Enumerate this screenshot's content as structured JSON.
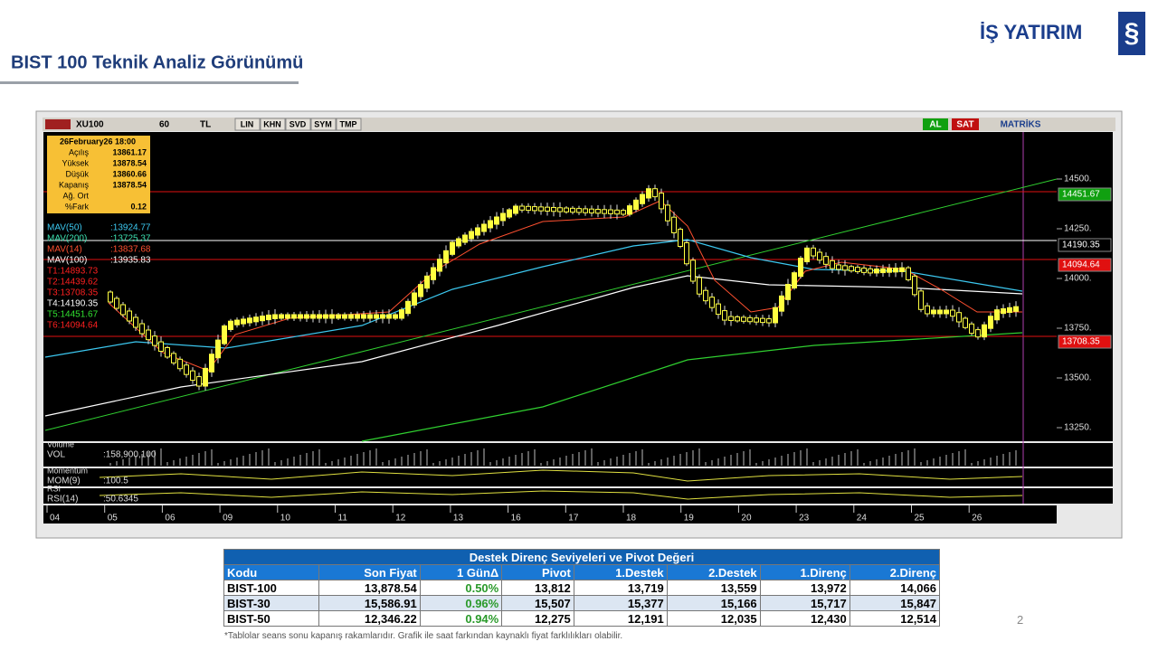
{
  "header": {
    "title": "BIST 100 Teknik Analiz Görünümü",
    "logo": "İŞ YATIRIM"
  },
  "chart_panel": {
    "toolbar": {
      "symbol": "XU100",
      "period": "60",
      "currency": "TL",
      "buttons": [
        "LIN",
        "KHN",
        "SVD",
        "SYM",
        "TMP"
      ],
      "buy": "AL",
      "sell": "SAT",
      "brand": "MATRİKS"
    },
    "info_box": {
      "date": "26February26 18:00",
      "rows": [
        {
          "label": "Açılış",
          "value": "13861.17"
        },
        {
          "label": "Yüksek",
          "value": "13878.54"
        },
        {
          "label": "Düşük",
          "value": "13860.66"
        },
        {
          "label": "Kapanış",
          "value": "13878.54"
        },
        {
          "label": "Ağ. Ort"
        },
        {
          "label": "%Fark",
          "value": "0.12"
        }
      ]
    },
    "indicators": [
      {
        "label": "MAV(50)",
        "value": ":13924.77",
        "color": "#3cc8f0"
      },
      {
        "label": "MAV(200)",
        "value": ":13725.37",
        "color": "#3ce0b0"
      },
      {
        "label": "MAV(14)",
        "value": ":13837.68",
        "color": "#ff5030"
      },
      {
        "label": "MAV(100)",
        "value": ":13935.83",
        "color": "#ffffff"
      },
      {
        "label": "T1:14893.73",
        "color": "#ff2020"
      },
      {
        "label": "T2:14439.62",
        "color": "#ff2020"
      },
      {
        "label": "T3:13708.35",
        "color": "#ff2020"
      },
      {
        "label": "T4:14190.35",
        "color": "#ffffff"
      },
      {
        "label": "T5:14451.67",
        "color": "#30e030"
      },
      {
        "label": "T6:14094.64",
        "color": "#ff2020"
      }
    ],
    "y_axis": [
      "14500.",
      "14250.",
      "14000.",
      "13750.",
      "13500.",
      "13250."
    ],
    "price_tags": [
      {
        "label": "14451.67",
        "bg": "#10a010",
        "fg": "#ffffff"
      },
      {
        "label": "14190.35",
        "bg": "#000000",
        "fg": "#ffffff"
      },
      {
        "label": "14094.64",
        "bg": "#e01010",
        "fg": "#ffffff"
      },
      {
        "label": "13708.35",
        "bg": "#e01010",
        "fg": "#ffffff"
      }
    ],
    "subpanels": [
      {
        "title": "Volume",
        "label": "VOL",
        "value": ":158,900,100"
      },
      {
        "title": "Momentum",
        "label": "MOM(9)",
        "value": ":100.5"
      },
      {
        "title": "RSI",
        "label": "RSI(14)",
        "value": ":50.6345"
      }
    ],
    "x_axis": [
      "04",
      "05",
      "06",
      "09",
      "10",
      "11",
      "12",
      "13",
      "16",
      "17",
      "18",
      "19",
      "20",
      "23",
      "24",
      "25",
      "26"
    ]
  },
  "table": {
    "title": "Destek Direnç Seviyeleri ve Pivot Değeri",
    "columns": [
      "Kodu",
      "Son Fiyat",
      "1 GünΔ",
      "Pivot",
      "1.Destek",
      "2.Destek",
      "1.Direnç",
      "2.Direnç"
    ],
    "rows": [
      [
        "BIST-100",
        "13,878.54",
        "0.50%",
        "13,812",
        "13,719",
        "13,559",
        "13,972",
        "14,066"
      ],
      [
        "BIST-30",
        "15,586.91",
        "0.96%",
        "15,507",
        "15,377",
        "15,166",
        "15,717",
        "15,847"
      ],
      [
        "BIST-50",
        "12,346.22",
        "0.94%",
        "12,275",
        "12,191",
        "12,035",
        "12,430",
        "12,514"
      ]
    ]
  },
  "footnote": "*Tablolar seans sonu kapanış rakamlarıdır. Grafik ile saat farkından kaynaklı fiyat farklılıkları olabilir.",
  "page_number": "2"
}
